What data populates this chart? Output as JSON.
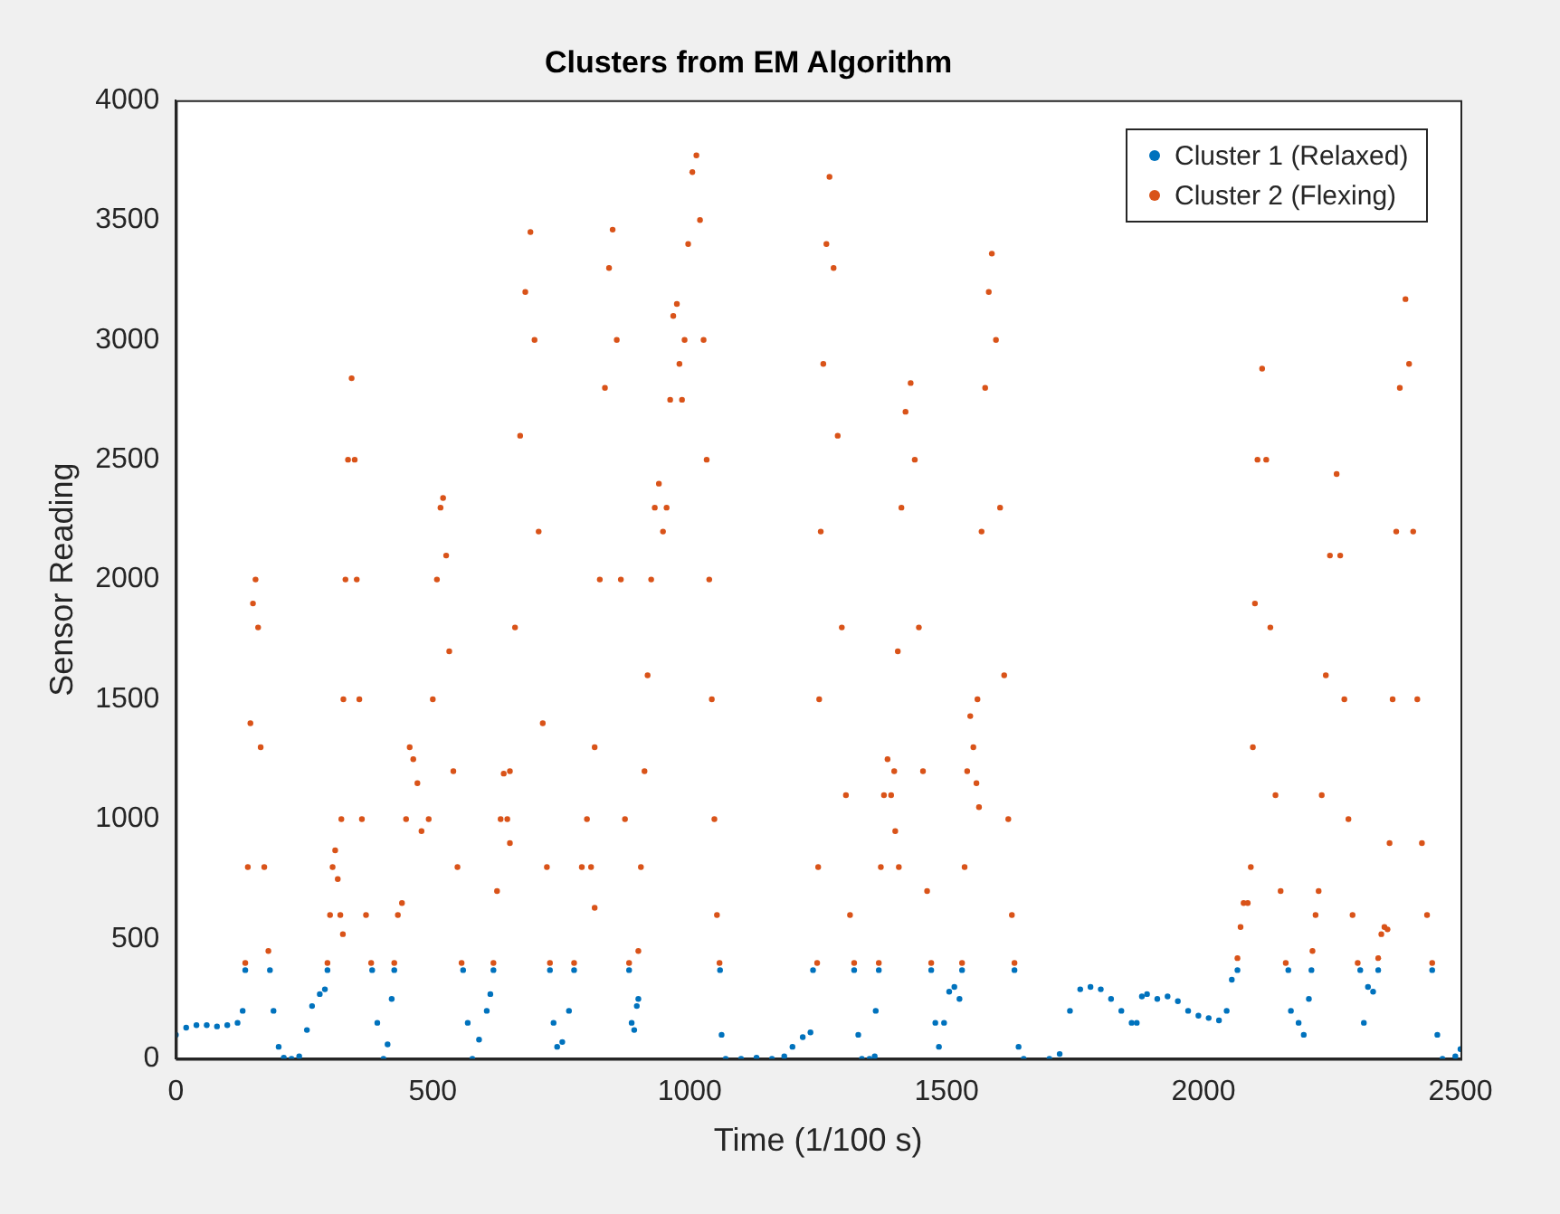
{
  "chart_data": {
    "type": "scatter",
    "title": "Clusters from EM Algorithm",
    "xlabel": "Time (1/100 s)",
    "ylabel": "Sensor Reading",
    "xlim": [
      0,
      2500
    ],
    "xticks": [
      0,
      500,
      1000,
      1500,
      2000,
      2500
    ],
    "ylim": [
      0,
      4000
    ],
    "yticks": [
      0,
      500,
      1000,
      1500,
      2000,
      2500,
      3000,
      3500,
      4000
    ],
    "grid": false,
    "legend": "top right",
    "marker": "circle",
    "series": [
      {
        "name": "Cluster 1 (Relaxed)",
        "color": "#0072bd",
        "x": [
          0,
          20,
          40,
          60,
          80,
          100,
          120,
          130,
          135,
          183,
          190,
          200,
          210,
          225,
          240,
          255,
          265,
          280,
          290,
          295,
          382,
          392,
          404,
          412,
          420,
          425,
          559,
          568,
          577,
          590,
          605,
          612,
          618,
          728,
          735,
          742,
          752,
          765,
          775,
          882,
          887,
          892,
          897,
          900,
          1059,
          1062,
          1070,
          1100,
          1130,
          1160,
          1184,
          1200,
          1220,
          1235,
          1240,
          1320,
          1328,
          1335,
          1350,
          1360,
          1362,
          1368,
          1470,
          1478,
          1485,
          1495,
          1505,
          1515,
          1525,
          1530,
          1632,
          1640,
          1650,
          1700,
          1720,
          1740,
          1760,
          1780,
          1800,
          1820,
          1840,
          1860,
          1870,
          1880,
          1890,
          1910,
          1930,
          1950,
          1970,
          1990,
          2010,
          2030,
          2045,
          2055,
          2066,
          2165,
          2170,
          2185,
          2195,
          2205,
          2210,
          2305,
          2312,
          2320,
          2330,
          2340,
          2445,
          2455,
          2465,
          2490,
          2500
        ],
        "values": [
          100,
          130,
          140,
          140,
          135,
          140,
          150,
          200,
          370,
          370,
          200,
          50,
          5,
          0,
          10,
          120,
          220,
          270,
          290,
          370,
          370,
          150,
          0,
          60,
          250,
          370,
          370,
          150,
          0,
          80,
          200,
          270,
          370,
          370,
          150,
          50,
          70,
          200,
          370,
          370,
          150,
          120,
          220,
          250,
          370,
          100,
          0,
          0,
          5,
          0,
          10,
          50,
          90,
          110,
          370,
          370,
          100,
          0,
          0,
          10,
          200,
          370,
          370,
          150,
          50,
          150,
          280,
          300,
          250,
          370,
          370,
          50,
          0,
          0,
          20,
          200,
          290,
          300,
          290,
          250,
          200,
          150,
          150,
          260,
          270,
          250,
          260,
          240,
          200,
          180,
          170,
          160,
          200,
          330,
          370,
          370,
          200,
          150,
          100,
          250,
          370,
          370,
          150,
          300,
          280,
          370,
          370,
          100,
          0,
          10,
          40
        ]
      },
      {
        "name": "Cluster 2 (Flexing)",
        "color": "#d95319",
        "x": [
          135,
          140,
          145,
          150,
          155,
          160,
          165,
          172,
          180,
          295,
          300,
          305,
          310,
          315,
          320,
          325,
          322,
          326,
          330,
          335,
          342,
          348,
          352,
          357,
          362,
          370,
          380,
          425,
          432,
          440,
          448,
          455,
          462,
          470,
          478,
          492,
          500,
          508,
          515,
          520,
          526,
          532,
          540,
          548,
          556,
          618,
          625,
          632,
          638,
          645,
          650,
          650,
          660,
          670,
          680,
          690,
          698,
          706,
          714,
          722,
          728,
          775,
          790,
          800,
          808,
          815,
          815,
          825,
          835,
          843,
          850,
          858,
          866,
          874,
          882,
          900,
          905,
          912,
          918,
          925,
          932,
          940,
          948,
          955,
          962,
          968,
          975,
          980,
          985,
          990,
          997,
          1005,
          1013,
          1020,
          1027,
          1033,
          1038,
          1043,
          1048,
          1053,
          1058,
          1248,
          1250,
          1252,
          1255,
          1260,
          1266,
          1272,
          1280,
          1288,
          1296,
          1304,
          1312,
          1320,
          1368,
          1372,
          1378,
          1385,
          1392,
          1400,
          1407,
          1398,
          1405,
          1412,
          1420,
          1430,
          1438,
          1446,
          1454,
          1462,
          1470,
          1530,
          1535,
          1540,
          1546,
          1552,
          1558,
          1563,
          1560,
          1568,
          1575,
          1582,
          1588,
          1596,
          1604,
          1612,
          1620,
          1627,
          1632,
          2066,
          2072,
          2078,
          2086,
          2092,
          2096,
          2100,
          2105,
          2114,
          2122,
          2130,
          2140,
          2150,
          2160,
          2212,
          2218,
          2224,
          2230,
          2238,
          2246,
          2259,
          2266,
          2274,
          2282,
          2290,
          2300,
          2340,
          2346,
          2352,
          2358,
          2362,
          2368,
          2375,
          2382,
          2393,
          2400,
          2408,
          2416,
          2425,
          2435,
          2445
        ],
        "values": [
          400,
          800,
          1400,
          1900,
          2000,
          1800,
          1300,
          800,
          450,
          400,
          600,
          800,
          870,
          750,
          600,
          520,
          1000,
          1500,
          2000,
          2500,
          2840,
          2500,
          2000,
          1500,
          1000,
          600,
          400,
          400,
          600,
          650,
          1000,
          1300,
          1250,
          1150,
          950,
          1000,
          1500,
          2000,
          2300,
          2340,
          2100,
          1700,
          1200,
          800,
          400,
          400,
          700,
          1000,
          1190,
          1000,
          900,
          1200,
          1800,
          2600,
          3200,
          3450,
          3000,
          2200,
          1400,
          800,
          400,
          400,
          800,
          1000,
          800,
          630,
          1300,
          2000,
          2800,
          3300,
          3460,
          3000,
          2000,
          1000,
          400,
          450,
          800,
          1200,
          1600,
          2000,
          2300,
          2400,
          2200,
          2300,
          2750,
          3100,
          3150,
          2900,
          2750,
          3000,
          3400,
          3700,
          3770,
          3500,
          3000,
          2500,
          2000,
          1500,
          1000,
          600,
          400,
          400,
          800,
          1500,
          2200,
          2900,
          3400,
          3680,
          3300,
          2600,
          1800,
          1100,
          600,
          400,
          400,
          800,
          1100,
          1250,
          1100,
          950,
          800,
          1200,
          1700,
          2300,
          2700,
          2820,
          2500,
          1800,
          1200,
          700,
          400,
          400,
          800,
          1200,
          1430,
          1300,
          1150,
          1050,
          1500,
          2200,
          2800,
          3200,
          3360,
          3000,
          2300,
          1600,
          1000,
          600,
          400,
          420,
          550,
          650,
          650,
          800,
          1300,
          1900,
          2500,
          2880,
          2500,
          1800,
          1100,
          700,
          400,
          450,
          600,
          700,
          1100,
          1600,
          2100,
          2440,
          2100,
          1500,
          1000,
          600,
          400,
          420,
          520,
          550,
          540,
          900,
          1500,
          2200,
          2800,
          3170,
          2900,
          2200,
          1500,
          900,
          600,
          400
        ]
      }
    ]
  }
}
